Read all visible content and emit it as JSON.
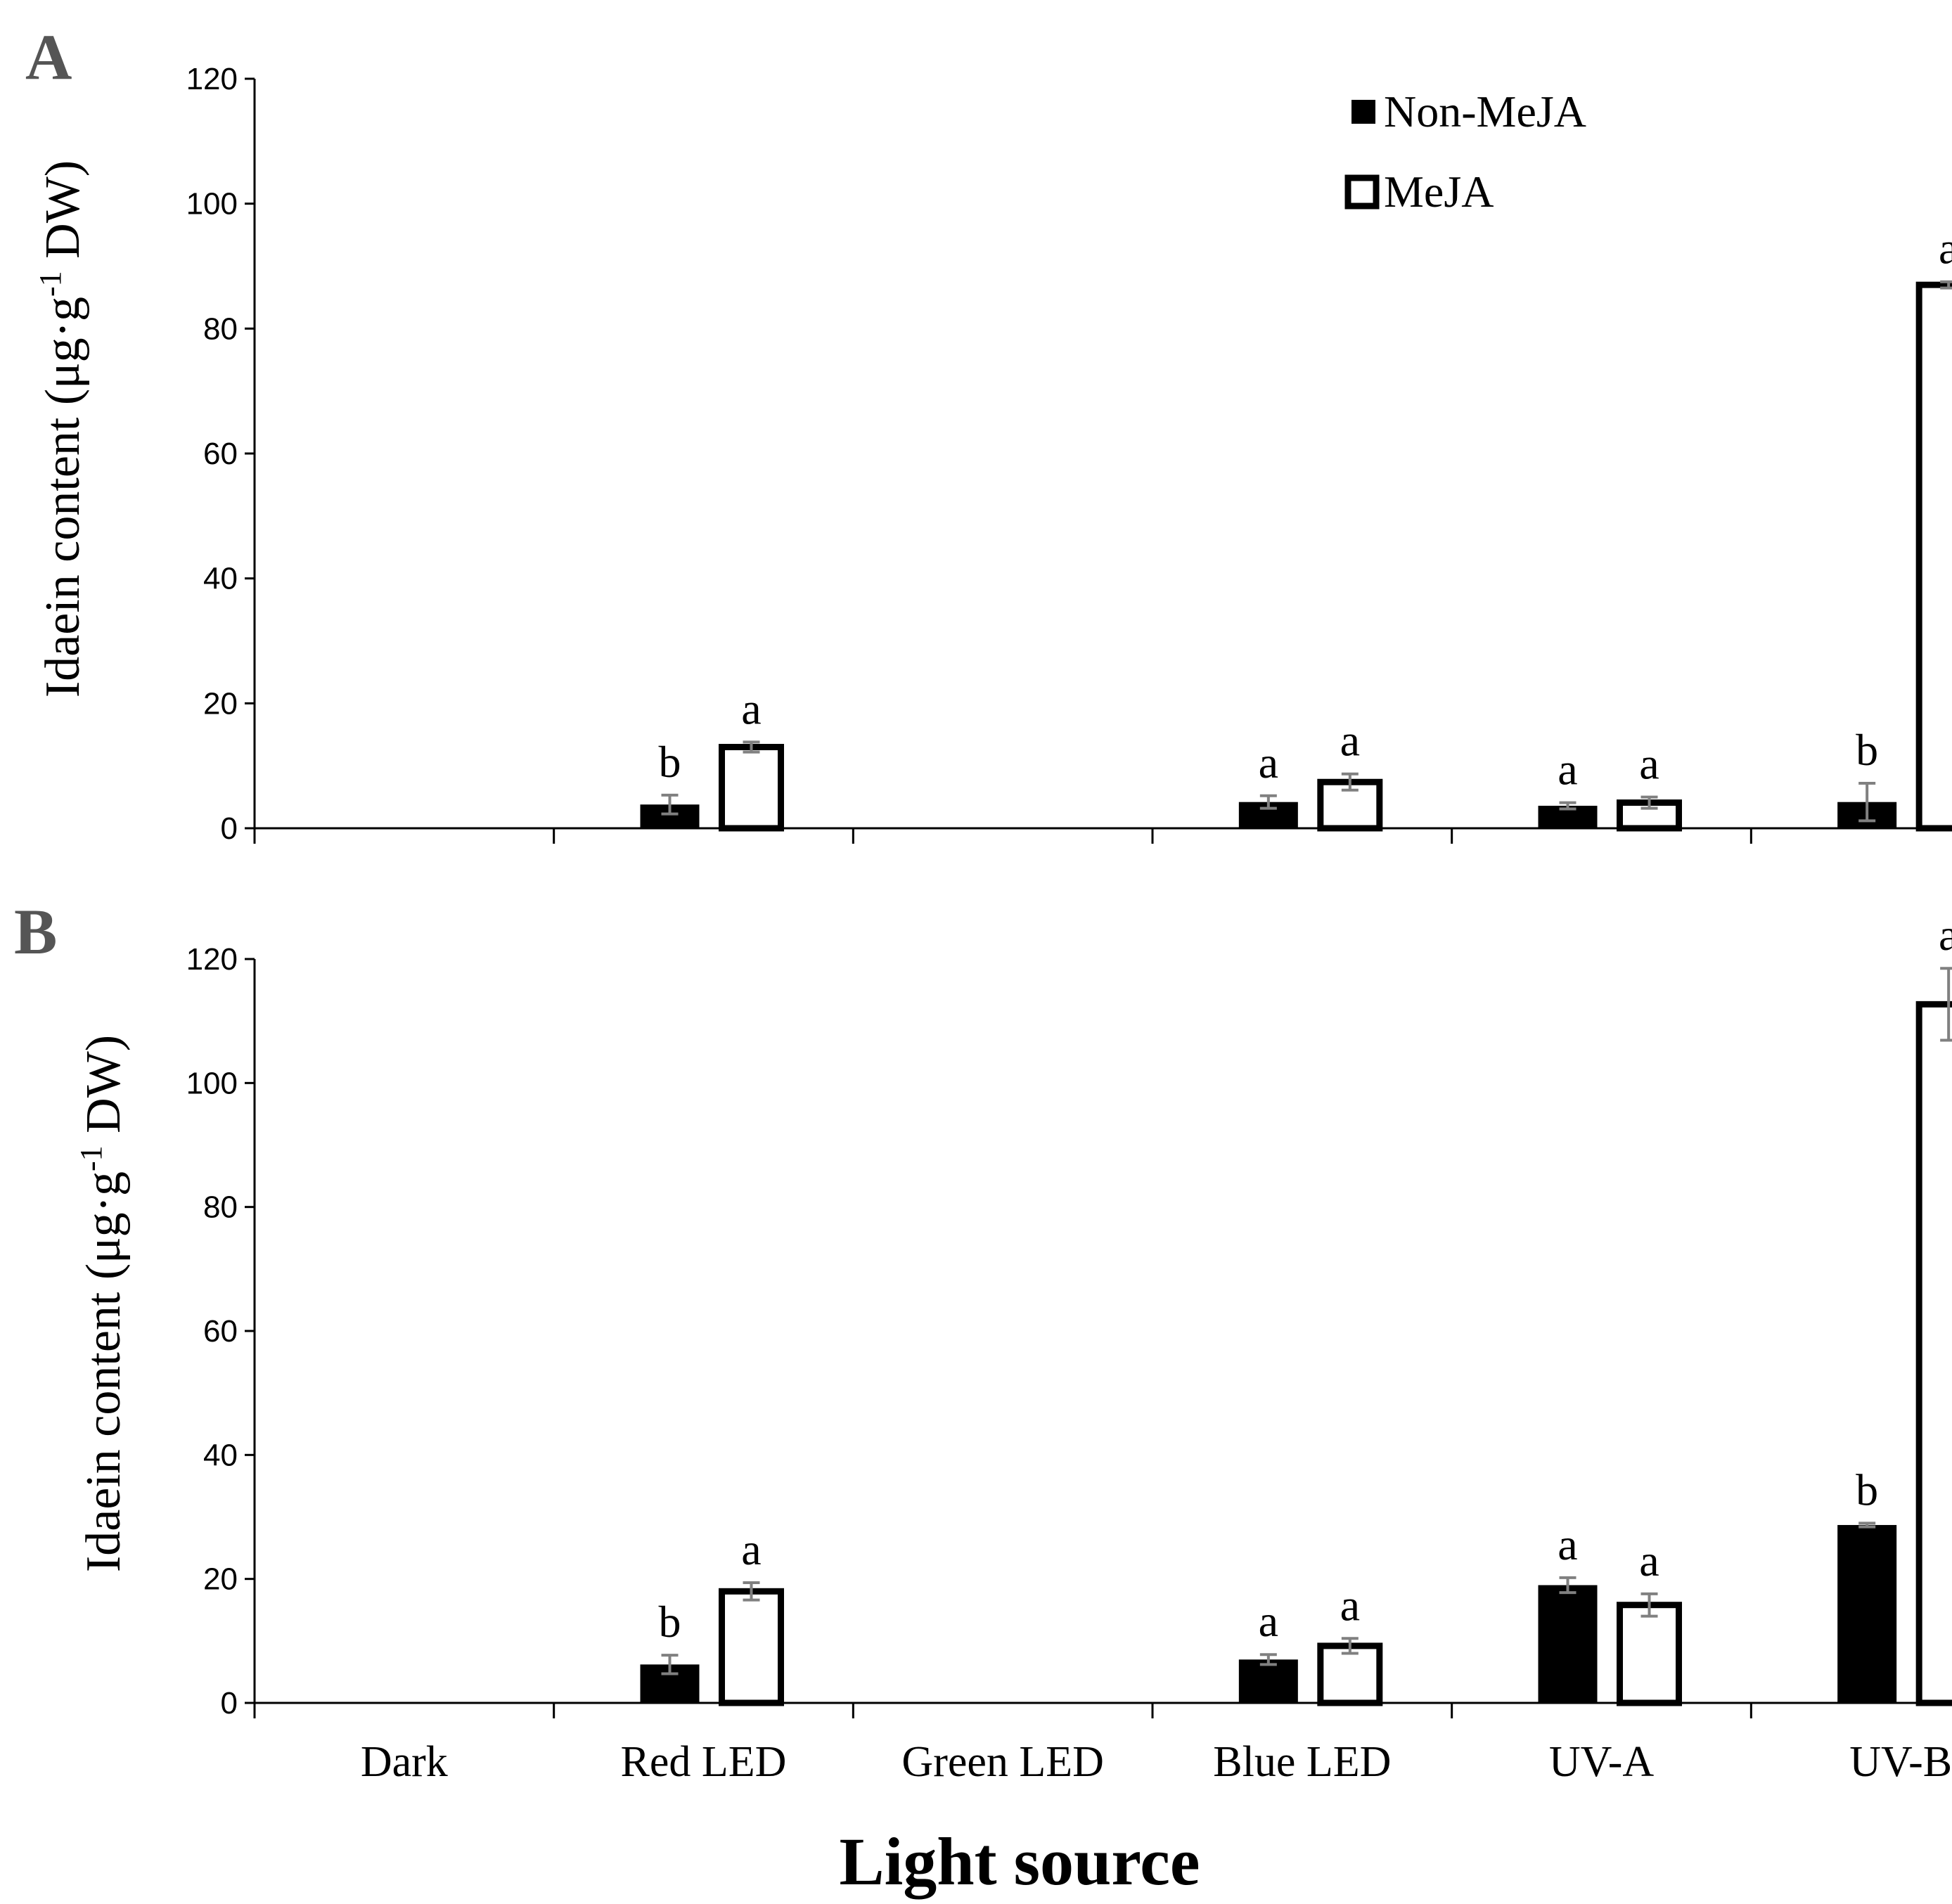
{
  "chart_data": [
    {
      "type": "bar",
      "panel": "A",
      "categories": [
        "Dark",
        "Red LED",
        "Green LED",
        "Blue LED",
        "UV-A",
        "UV-B"
      ],
      "series": [
        {
          "name": "Non-MeJA",
          "values": [
            0,
            3.8,
            0,
            4.2,
            3.6,
            4.2
          ],
          "errors": [
            0,
            1.5,
            0,
            1.0,
            0.5,
            3.0
          ],
          "letters": [
            "",
            "b",
            "",
            "a",
            "a",
            "b"
          ]
        },
        {
          "name": "MeJA",
          "values": [
            0,
            13,
            0,
            7.4,
            4.1,
            87
          ],
          "errors": [
            0,
            0.8,
            0,
            1.3,
            0.9,
            0.5
          ],
          "letters": [
            "",
            "a",
            "",
            "a",
            "a",
            "a"
          ]
        }
      ],
      "ylim": [
        0,
        120
      ],
      "yticks": [
        0,
        20,
        40,
        60,
        80,
        100,
        120
      ],
      "ylabel_main": "Idaein content (μg·g",
      "ylabel_sup": "-1",
      "ylabel_tail": " DW)",
      "legend": "top-right"
    },
    {
      "type": "bar",
      "panel": "B",
      "categories": [
        "Dark",
        "Red LED",
        "Green LED",
        "Blue LED",
        "UV-A",
        "UV-B"
      ],
      "series": [
        {
          "name": "Non-MeJA",
          "values": [
            0,
            6.2,
            0,
            7.0,
            19,
            28.7
          ],
          "errors": [
            0,
            1.5,
            0,
            0.8,
            1.2,
            0.3
          ],
          "letters": [
            "",
            "b",
            "",
            "a",
            "a",
            "b"
          ]
        },
        {
          "name": "MeJA",
          "values": [
            0,
            18,
            0,
            9.2,
            15.8,
            112.7
          ],
          "errors": [
            0,
            1.4,
            0,
            1.2,
            1.8,
            5.8
          ],
          "letters": [
            "",
            "a",
            "",
            "a",
            "a",
            "a"
          ]
        }
      ],
      "ylim": [
        0,
        120
      ],
      "yticks": [
        0,
        20,
        40,
        60,
        80,
        100,
        120
      ],
      "ylabel_main": "Idaein content (μg·g",
      "ylabel_sup": "-1",
      "ylabel_tail": " DW)",
      "xlabel": "Light source"
    }
  ],
  "legend": {
    "items": [
      "Non-MeJA",
      "MeJA"
    ]
  },
  "panel_labels": [
    "A",
    "B"
  ],
  "colors": {
    "non_meja": "#000000",
    "meja_fill": "#ffffff",
    "meja_stroke": "#000000",
    "error_bar": "#808080",
    "axis": "#000000"
  }
}
